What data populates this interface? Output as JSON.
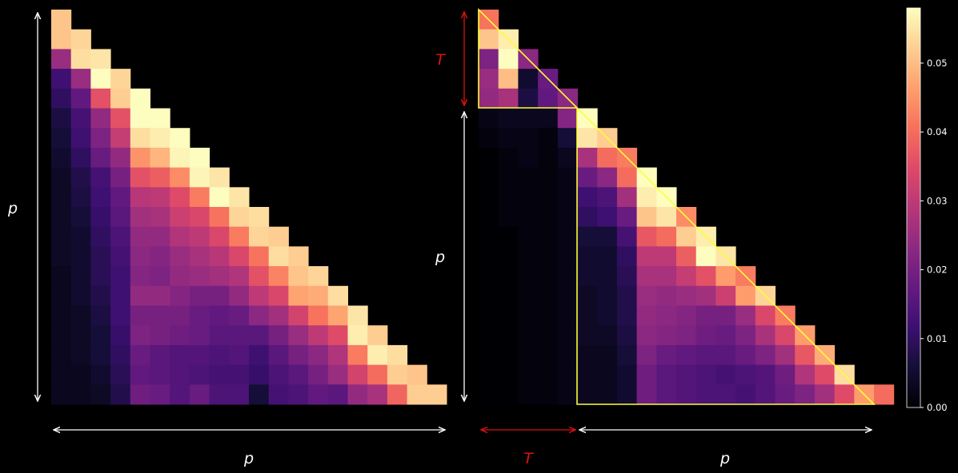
{
  "chart_data": [
    {
      "type": "heatmap",
      "panel": "left",
      "shape": "lower-triangular",
      "rows": 20,
      "cols": 20,
      "xlabel": "p",
      "ylabel": "p",
      "values": [
        [
          0.051
        ],
        [
          0.051,
          0.053
        ],
        [
          0.025,
          0.054,
          0.055
        ],
        [
          0.012,
          0.025,
          0.058,
          0.053
        ],
        [
          0.01,
          0.017,
          0.036,
          0.052,
          0.058
        ],
        [
          0.007,
          0.013,
          0.024,
          0.036,
          0.058,
          0.058
        ],
        [
          0.006,
          0.012,
          0.021,
          0.031,
          0.054,
          0.056,
          0.058
        ],
        [
          0.005,
          0.01,
          0.018,
          0.024,
          0.045,
          0.049,
          0.057,
          0.058
        ],
        [
          0.004,
          0.008,
          0.013,
          0.02,
          0.036,
          0.038,
          0.044,
          0.057,
          0.055
        ],
        [
          0.004,
          0.007,
          0.012,
          0.017,
          0.029,
          0.03,
          0.035,
          0.042,
          0.058,
          0.055
        ],
        [
          0.004,
          0.006,
          0.011,
          0.016,
          0.026,
          0.027,
          0.032,
          0.034,
          0.041,
          0.053,
          0.054
        ],
        [
          0.004,
          0.005,
          0.01,
          0.014,
          0.024,
          0.024,
          0.028,
          0.03,
          0.034,
          0.042,
          0.053,
          0.052
        ],
        [
          0.004,
          0.005,
          0.009,
          0.013,
          0.023,
          0.022,
          0.025,
          0.027,
          0.029,
          0.034,
          0.041,
          0.054,
          0.052
        ],
        [
          0.003,
          0.005,
          0.009,
          0.012,
          0.022,
          0.021,
          0.024,
          0.025,
          0.026,
          0.028,
          0.036,
          0.043,
          0.051,
          0.053
        ],
        [
          0.003,
          0.005,
          0.008,
          0.012,
          0.024,
          0.024,
          0.022,
          0.02,
          0.02,
          0.024,
          0.03,
          0.034,
          0.047,
          0.048,
          0.054
        ],
        [
          0.003,
          0.004,
          0.007,
          0.012,
          0.02,
          0.02,
          0.02,
          0.018,
          0.017,
          0.018,
          0.023,
          0.026,
          0.033,
          0.041,
          0.047,
          0.055
        ],
        [
          0.003,
          0.004,
          0.006,
          0.011,
          0.021,
          0.02,
          0.019,
          0.018,
          0.016,
          0.016,
          0.016,
          0.02,
          0.025,
          0.03,
          0.035,
          0.056,
          0.052
        ],
        [
          0.003,
          0.004,
          0.006,
          0.01,
          0.018,
          0.016,
          0.015,
          0.015,
          0.014,
          0.015,
          0.012,
          0.016,
          0.02,
          0.023,
          0.028,
          0.042,
          0.056,
          0.054
        ],
        [
          0.003,
          0.003,
          0.005,
          0.009,
          0.017,
          0.016,
          0.015,
          0.014,
          0.013,
          0.013,
          0.011,
          0.014,
          0.016,
          0.02,
          0.025,
          0.033,
          0.04,
          0.052,
          0.051
        ],
        [
          0.003,
          0.003,
          0.004,
          0.008,
          0.019,
          0.018,
          0.015,
          0.018,
          0.014,
          0.014,
          0.006,
          0.013,
          0.014,
          0.017,
          0.016,
          0.024,
          0.027,
          0.039,
          0.052,
          0.052
        ]
      ]
    },
    {
      "type": "heatmap",
      "panel": "right",
      "shape": "lower-triangular",
      "rows": 20,
      "cols": 25,
      "xlabel_left": "T",
      "xlabel_right": "p",
      "ylabel_top": "T",
      "ylabel_bottom": "p",
      "values": [
        [
          0.041
        ],
        [
          0.051,
          0.056
        ],
        [
          0.021,
          0.058,
          0.023
        ],
        [
          0.025,
          0.05,
          0.005,
          0.018
        ],
        [
          0.024,
          0.027,
          0.007,
          0.017,
          0.023
        ],
        [
          0.002,
          0.003,
          0.003,
          0.003,
          0.022,
          0.058
        ],
        [
          0.001,
          0.002,
          0.002,
          0.001,
          0.006,
          0.055,
          0.052
        ],
        [
          0.0,
          0.001,
          0.002,
          0.001,
          0.003,
          0.027,
          0.04,
          0.042
        ],
        [
          0.0,
          0.001,
          0.001,
          0.001,
          0.002,
          0.018,
          0.023,
          0.04,
          0.058
        ],
        [
          0.0,
          0.001,
          0.001,
          0.001,
          0.002,
          0.012,
          0.014,
          0.026,
          0.056,
          0.058
        ],
        [
          0.0,
          0.001,
          0.001,
          0.001,
          0.002,
          0.01,
          0.012,
          0.018,
          0.051,
          0.055,
          0.044
        ],
        [
          0.0,
          0.0,
          0.001,
          0.001,
          0.002,
          0.006,
          0.006,
          0.013,
          0.037,
          0.04,
          0.052,
          0.056
        ],
        [
          0.0,
          0.0,
          0.001,
          0.001,
          0.002,
          0.005,
          0.005,
          0.01,
          0.03,
          0.03,
          0.038,
          0.058,
          0.055
        ],
        [
          0.0,
          0.0,
          0.001,
          0.001,
          0.002,
          0.005,
          0.005,
          0.009,
          0.027,
          0.027,
          0.031,
          0.036,
          0.046,
          0.042
        ],
        [
          0.0,
          0.0,
          0.001,
          0.001,
          0.002,
          0.004,
          0.005,
          0.008,
          0.025,
          0.024,
          0.025,
          0.026,
          0.032,
          0.046,
          0.053
        ],
        [
          0.0,
          0.0,
          0.001,
          0.001,
          0.002,
          0.004,
          0.005,
          0.008,
          0.024,
          0.023,
          0.022,
          0.02,
          0.02,
          0.025,
          0.034,
          0.042
        ],
        [
          0.0,
          0.0,
          0.001,
          0.001,
          0.002,
          0.004,
          0.004,
          0.007,
          0.023,
          0.022,
          0.021,
          0.019,
          0.018,
          0.021,
          0.027,
          0.034,
          0.046
        ],
        [
          0.0,
          0.0,
          0.001,
          0.001,
          0.002,
          0.003,
          0.003,
          0.006,
          0.021,
          0.018,
          0.017,
          0.016,
          0.016,
          0.018,
          0.021,
          0.026,
          0.037,
          0.048
        ],
        [
          0.0,
          0.0,
          0.001,
          0.001,
          0.002,
          0.003,
          0.003,
          0.005,
          0.019,
          0.016,
          0.015,
          0.014,
          0.013,
          0.014,
          0.015,
          0.019,
          0.028,
          0.035,
          0.054
        ],
        [
          0.0,
          0.0,
          0.001,
          0.001,
          0.002,
          0.003,
          0.003,
          0.005,
          0.019,
          0.016,
          0.015,
          0.014,
          0.014,
          0.013,
          0.015,
          0.018,
          0.021,
          0.026,
          0.035,
          0.046,
          0.04
        ]
      ],
      "overlay": {
        "outline_color": "#ffff33",
        "annotation_color": "#dd1111"
      }
    }
  ],
  "colorbar": {
    "colormap": "magma",
    "min": 0.0,
    "max": 0.058,
    "ticks": [
      "0.00",
      "0.01",
      "0.02",
      "0.03",
      "0.04",
      "0.05"
    ]
  }
}
